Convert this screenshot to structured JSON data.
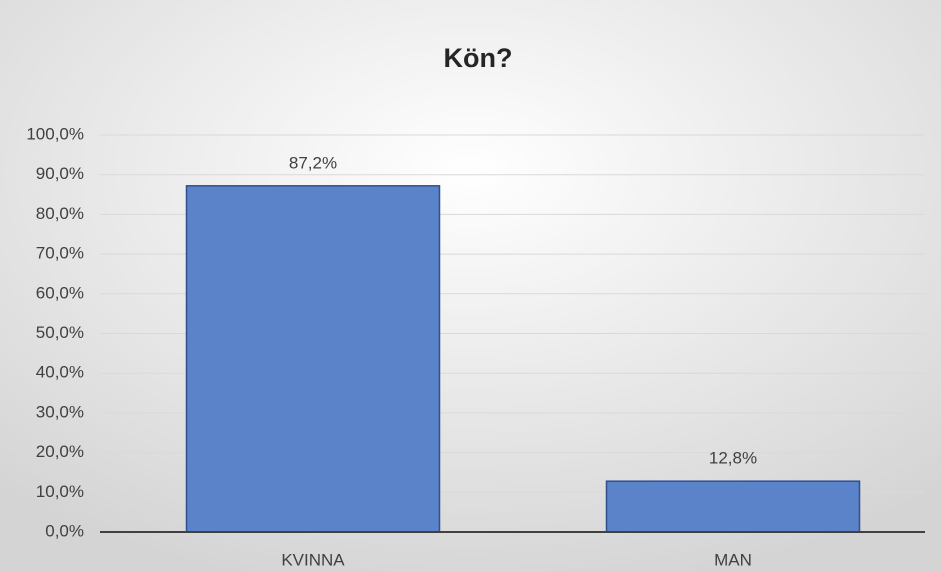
{
  "chart_data": {
    "type": "bar",
    "title": "Kön?",
    "categories": [
      "KVINNA",
      "MAN"
    ],
    "values": [
      87.2,
      12.8
    ],
    "value_labels": [
      "87,2%",
      "12,8%"
    ],
    "color": "#5b83c9",
    "ylim": [
      0,
      100
    ],
    "yticks": [
      {
        "value": 0,
        "label": "0,0%"
      },
      {
        "value": 10,
        "label": "10,0%"
      },
      {
        "value": 20,
        "label": "20,0%"
      },
      {
        "value": 30,
        "label": "30,0%"
      },
      {
        "value": 40,
        "label": "40,0%"
      },
      {
        "value": 50,
        "label": "50,0%"
      },
      {
        "value": 60,
        "label": "60,0%"
      },
      {
        "value": 70,
        "label": "70,0%"
      },
      {
        "value": 80,
        "label": "80,0%"
      },
      {
        "value": 90,
        "label": "90,0%"
      },
      {
        "value": 100,
        "label": "100,0%"
      }
    ],
    "grid": true
  }
}
